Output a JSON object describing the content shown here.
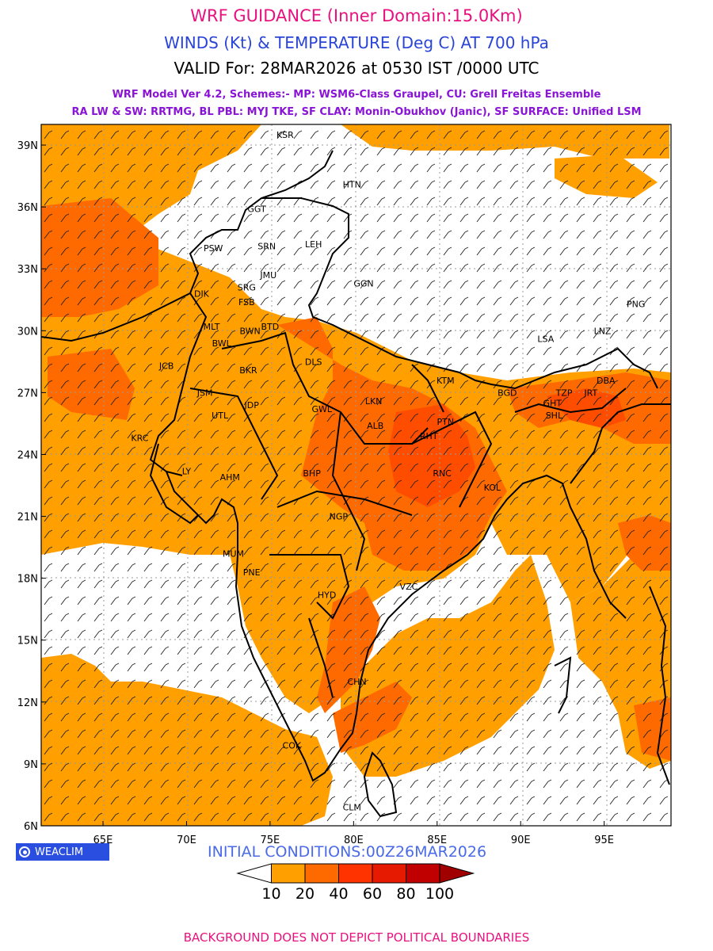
{
  "header": {
    "title": "WRF GUIDANCE (Inner Domain:15.0Km)",
    "subtitle": "WINDS (Kt) & TEMPERATURE (Deg C) AT 700 hPa",
    "valid": "VALID For: 28MAR2026 at 0530 IST /0000 UTC",
    "model_line1": "WRF Model Ver 4.2, Schemes:- MP: WSM6-Class Graupel, CU: Grell Freitas Ensemble",
    "model_line2": "RA LW & SW: RRTMG, BL PBL: MYJ TKE, SF CLAY: Monin-Obukhov (Janic), SF SURFACE: Unified LSM"
  },
  "map": {
    "lon_labels": [
      "65E",
      "70E",
      "75E",
      "80E",
      "85E",
      "90E",
      "95E"
    ],
    "lon_values": [
      65,
      70,
      75,
      80,
      85,
      90,
      95
    ],
    "lat_labels": [
      "39N",
      "36N",
      "33N",
      "30N",
      "27N",
      "24N",
      "21N",
      "18N",
      "15N",
      "12N",
      "9N",
      "6N"
    ],
    "lat_values": [
      39,
      36,
      33,
      30,
      27,
      24,
      21,
      18,
      15,
      12,
      9,
      6
    ],
    "lon_range": [
      61.3,
      99.0
    ],
    "lat_range": [
      6.0,
      40.0
    ],
    "stations": [
      {
        "name": "KSR",
        "lon": 75.9,
        "lat": 39.5
      },
      {
        "name": "HTN",
        "lon": 79.9,
        "lat": 37.1
      },
      {
        "name": "GGT",
        "lon": 74.2,
        "lat": 35.9
      },
      {
        "name": "LEH",
        "lon": 77.6,
        "lat": 34.2
      },
      {
        "name": "PSW",
        "lon": 71.6,
        "lat": 34.0
      },
      {
        "name": "SRN",
        "lon": 74.8,
        "lat": 34.1
      },
      {
        "name": "JMU",
        "lon": 74.9,
        "lat": 32.7
      },
      {
        "name": "GGN",
        "lon": 80.6,
        "lat": 32.3
      },
      {
        "name": "DIK",
        "lon": 70.9,
        "lat": 31.8
      },
      {
        "name": "SRG",
        "lon": 73.6,
        "lat": 32.1
      },
      {
        "name": "FSB",
        "lon": 73.6,
        "lat": 31.4
      },
      {
        "name": "PNG",
        "lon": 96.9,
        "lat": 31.3
      },
      {
        "name": "MLT",
        "lon": 71.5,
        "lat": 30.2
      },
      {
        "name": "BWN",
        "lon": 73.8,
        "lat": 30.0
      },
      {
        "name": "BTD",
        "lon": 75.0,
        "lat": 30.2
      },
      {
        "name": "LNZ",
        "lon": 94.9,
        "lat": 30.0
      },
      {
        "name": "LSA",
        "lon": 91.5,
        "lat": 29.6
      },
      {
        "name": "BWL",
        "lon": 72.1,
        "lat": 29.4
      },
      {
        "name": "DLS",
        "lon": 77.6,
        "lat": 28.5
      },
      {
        "name": "JCB",
        "lon": 68.8,
        "lat": 28.3
      },
      {
        "name": "BKR",
        "lon": 73.7,
        "lat": 28.1
      },
      {
        "name": "KTM",
        "lon": 85.5,
        "lat": 27.6
      },
      {
        "name": "DBA",
        "lon": 95.1,
        "lat": 27.6
      },
      {
        "name": "BGD",
        "lon": 89.2,
        "lat": 27.0
      },
      {
        "name": "TZP",
        "lon": 92.6,
        "lat": 27.0
      },
      {
        "name": "JRT",
        "lon": 94.2,
        "lat": 27.0
      },
      {
        "name": "JSM",
        "lon": 71.1,
        "lat": 27.0
      },
      {
        "name": "LKN",
        "lon": 81.2,
        "lat": 26.6
      },
      {
        "name": "GHT",
        "lon": 91.9,
        "lat": 26.5
      },
      {
        "name": "JDP",
        "lon": 73.9,
        "lat": 26.4
      },
      {
        "name": "GWL",
        "lon": 78.1,
        "lat": 26.2
      },
      {
        "name": "UTL",
        "lon": 72.0,
        "lat": 25.9
      },
      {
        "name": "SHL",
        "lon": 92.0,
        "lat": 25.9
      },
      {
        "name": "PTN",
        "lon": 85.5,
        "lat": 25.6
      },
      {
        "name": "ALB",
        "lon": 81.3,
        "lat": 25.4
      },
      {
        "name": "KRC",
        "lon": 67.2,
        "lat": 24.8
      },
      {
        "name": "RHT",
        "lon": 84.5,
        "lat": 24.9
      },
      {
        "name": "BHP",
        "lon": 77.5,
        "lat": 23.1
      },
      {
        "name": "RNC",
        "lon": 85.3,
        "lat": 23.1
      },
      {
        "name": "LY",
        "lon": 70.0,
        "lat": 23.2
      },
      {
        "name": "AHM",
        "lon": 72.6,
        "lat": 22.9
      },
      {
        "name": "KOL",
        "lon": 88.3,
        "lat": 22.4
      },
      {
        "name": "NGP",
        "lon": 79.1,
        "lat": 21.0
      },
      {
        "name": "MUM",
        "lon": 72.8,
        "lat": 19.2
      },
      {
        "name": "PNE",
        "lon": 73.9,
        "lat": 18.3
      },
      {
        "name": "HYD",
        "lon": 78.4,
        "lat": 17.2
      },
      {
        "name": "VZC",
        "lon": 83.3,
        "lat": 17.6
      },
      {
        "name": "CHN",
        "lon": 80.2,
        "lat": 13.0
      },
      {
        "name": "COK",
        "lon": 76.3,
        "lat": 9.9
      },
      {
        "name": "CLM",
        "lon": 79.9,
        "lat": 6.9
      }
    ]
  },
  "logo_text": "WEACLIM",
  "initial_conditions": "INITIAL CONDITIONS:00Z26MAR2026",
  "legend": {
    "labels": [
      "10",
      "20",
      "40",
      "60",
      "80",
      "100"
    ],
    "colors": [
      "#ffffff",
      "#ff9f00",
      "#ff6a00",
      "#ff3300",
      "#e61a00",
      "#c00000",
      "#a00000"
    ]
  },
  "colors": {
    "fill_light": "#ff9f00",
    "fill_dark": "#ff6a00",
    "fill_hot": "#ff5500",
    "wind_numbers": "#1a3ad8",
    "gridline": "#9a9a9a"
  },
  "footer": "BACKGROUND DOES NOT DEPICT POLITICAL BOUNDARIES"
}
